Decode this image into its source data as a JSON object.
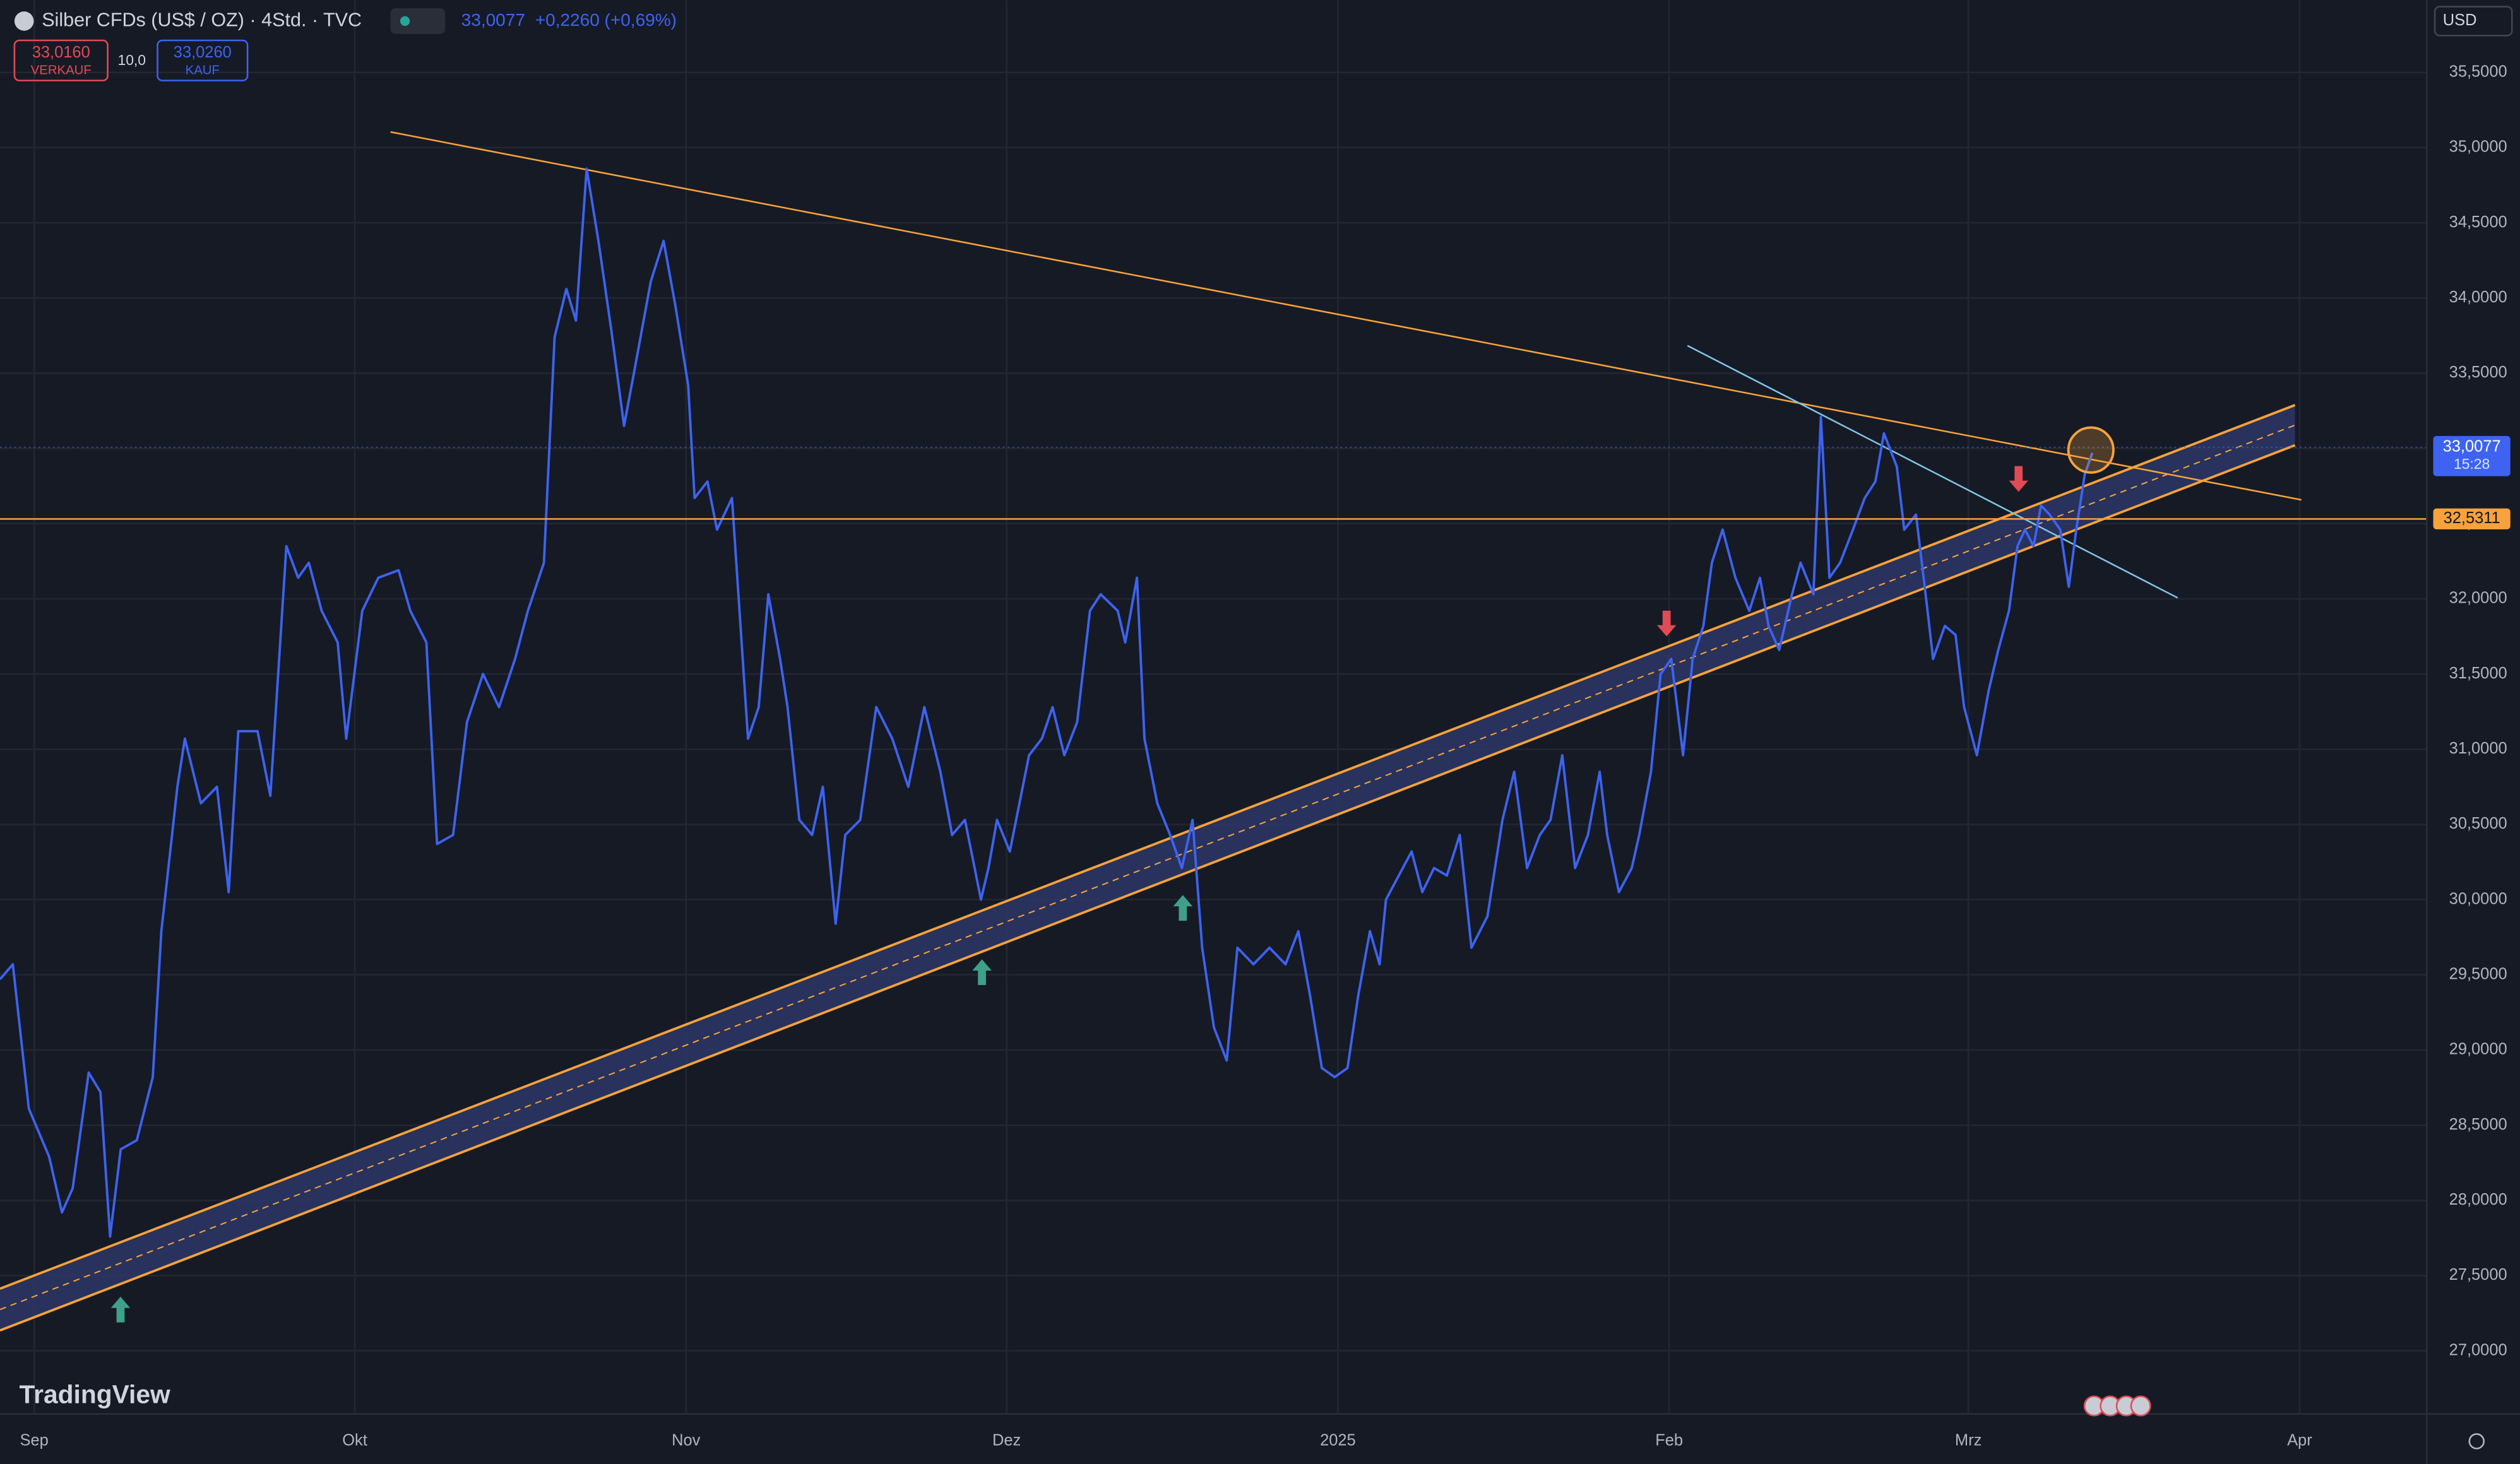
{
  "chart_data": {
    "type": "line",
    "title": "Silber CFDs (US$ / OZ) · 4Std. · TVC",
    "x": [
      -3.2,
      -2.0,
      -0.5,
      1.4,
      2.6,
      3.6,
      5.1,
      6.2,
      7.1,
      8.1,
      9.6,
      11.1,
      11.9,
      13.4,
      14.1,
      15.6,
      17.1,
      18.2,
      19.1,
      20.9,
      22.1,
      23.6,
      24.7,
      25.7,
      26.9,
      28.4,
      29.2,
      30.7,
      32.2,
      34.1,
      35.2,
      36.7,
      37.7,
      39.2,
      40.5,
      42.0,
      43.5,
      45.0,
      46.2,
      47.7,
      48.7,
      49.8,
      50.7,
      51.7,
      52.8,
      54.0,
      55.2,
      56.2,
      57.7,
      58.9,
      60.0,
      61.2,
      61.8,
      63.0,
      63.9,
      65.3,
      66.8,
      67.8,
      68.7,
      69.8,
      70.5,
      71.6,
      72.8,
      73.8,
      75.0,
      75.9,
      77.3,
      78.8,
      80.3,
      81.8,
      83.3,
      84.8,
      85.9,
      87.1,
      88.6,
      89.3,
      90.1,
      91.3,
      93.1,
      94.3,
      95.3,
      96.4,
      97.6,
      98.8,
      99.8,
      101.4,
      102.1,
      103.2,
      103.9,
      105.1,
      106.3,
      107.4,
      108.4,
      109.3,
      110.4,
      111.6,
      112.6,
      114.1,
      115.6,
      117.1,
      118.3,
      119.4,
      120.5,
      121.7,
      122.9,
      123.9,
      125.0,
      125.9,
      126.5,
      127.7,
      128.9,
      129.9,
      131.0,
      132.2,
      133.4,
      134.5,
      136.0,
      137.4,
      138.5,
      139.7,
      140.9,
      141.9,
      143.0,
      144.2,
      145.4,
      146.5,
      147.2,
      148.3,
      149.5,
      150.2,
      151.3,
      152.2,
      153.2,
      154.3,
      155.2,
      156.2,
      157.0,
      158.0,
      159.2,
      160.5,
      161.5,
      162.3,
      163.3,
      164.5,
      165.3,
      166.5,
      167.2,
      168.0,
      169.0,
      170.2,
      171.3,
      172.3,
      173.1,
      174.3,
      175.0,
      176.1,
      177.0,
      177.7,
      178.8,
      179.8,
      180.6,
      181.8,
      182.9,
      183.8,
      184.8,
      185.6,
      186.3,
      187.1,
      187.8,
      188.6,
      189.6,
      190.4,
      191.1,
      191.9,
      192.6
    ],
    "series": [
      {
        "color": "#3d63f0",
        "values": [
          29.47,
          29.57,
          28.61,
          28.29,
          27.92,
          28.08,
          28.85,
          28.72,
          27.76,
          28.34,
          28.4,
          28.82,
          29.79,
          30.75,
          31.07,
          30.64,
          30.75,
          30.05,
          31.12,
          31.12,
          30.69,
          32.35,
          32.14,
          32.24,
          31.92,
          31.71,
          31.07,
          31.92,
          32.14,
          32.19,
          31.92,
          31.71,
          30.37,
          30.43,
          31.18,
          31.5,
          31.28,
          31.6,
          31.92,
          32.24,
          33.74,
          34.06,
          33.85,
          34.86,
          34.38,
          33.79,
          33.15,
          33.53,
          34.11,
          34.38,
          33.95,
          33.42,
          32.67,
          32.78,
          32.46,
          32.67,
          31.07,
          31.28,
          32.03,
          31.6,
          31.28,
          30.53,
          30.43,
          30.75,
          29.84,
          30.43,
          30.53,
          31.28,
          31.07,
          30.75,
          31.28,
          30.85,
          30.43,
          30.53,
          30.0,
          30.21,
          30.53,
          30.32,
          30.96,
          31.07,
          31.28,
          30.96,
          31.18,
          31.92,
          32.03,
          31.92,
          31.71,
          32.14,
          31.07,
          30.64,
          30.43,
          30.21,
          30.53,
          29.68,
          29.15,
          28.93,
          29.68,
          29.57,
          29.68,
          29.57,
          29.79,
          29.36,
          28.88,
          28.82,
          28.88,
          29.36,
          29.79,
          29.57,
          30.0,
          30.16,
          30.32,
          30.05,
          30.21,
          30.16,
          30.43,
          29.68,
          29.89,
          30.53,
          30.85,
          30.21,
          30.43,
          30.53,
          30.96,
          30.21,
          30.43,
          30.85,
          30.43,
          30.05,
          30.21,
          30.43,
          30.85,
          31.5,
          31.6,
          30.96,
          31.6,
          31.82,
          32.24,
          32.46,
          32.14,
          31.92,
          32.14,
          31.82,
          31.66,
          32.03,
          32.24,
          32.03,
          33.21,
          32.14,
          32.24,
          32.46,
          32.67,
          32.78,
          33.1,
          32.88,
          32.46,
          32.56,
          32.03,
          31.6,
          31.82,
          31.76,
          31.28,
          30.96,
          31.39,
          31.66,
          31.92,
          32.35,
          32.46,
          32.35,
          32.62,
          32.56,
          32.46,
          32.08,
          32.46,
          32.83,
          32.97
        ]
      }
    ],
    "xlim": [
      -3.2,
      223.9
    ],
    "xticks": [
      {
        "value": 0,
        "label": "Sep"
      },
      {
        "value": 30,
        "label": "Okt"
      },
      {
        "value": 61,
        "label": "Nov"
      },
      {
        "value": 91,
        "label": "Dez"
      },
      {
        "value": 122,
        "label": "2025"
      },
      {
        "value": 153,
        "label": "Feb"
      },
      {
        "value": 181,
        "label": "Mrz"
      },
      {
        "value": 212,
        "label": "Apr"
      }
    ],
    "ylim": [
      26.58,
      35.98
    ],
    "yticks": [
      {
        "value": 27,
        "label": "27,0000"
      },
      {
        "value": 27.5,
        "label": "27,5000"
      },
      {
        "value": 28,
        "label": "28,0000"
      },
      {
        "value": 28.5,
        "label": "28,5000"
      },
      {
        "value": 29,
        "label": "29,0000"
      },
      {
        "value": 29.5,
        "label": "29,5000"
      },
      {
        "value": 30,
        "label": "30,0000"
      },
      {
        "value": 30.5,
        "label": "30,5000"
      },
      {
        "value": 31,
        "label": "31,0000"
      },
      {
        "value": 31.5,
        "label": "31,5000"
      },
      {
        "value": 32,
        "label": "32,0000"
      },
      {
        "value": 32.5,
        "label": "32,5000"
      },
      {
        "value": 33,
        "label": "33,0000"
      },
      {
        "value": 33.5,
        "label": "33,5000"
      },
      {
        "value": 34,
        "label": "34,0000"
      },
      {
        "value": 34.5,
        "label": "34,5000"
      },
      {
        "value": 35,
        "label": "35,0000"
      },
      {
        "value": 35.5,
        "label": "35,5000"
      }
    ],
    "grid": true,
    "horizontal_line": {
      "value": 32.5311,
      "label": "32,5311",
      "color": "#f7a23a"
    },
    "last_price": {
      "value": 33.0077,
      "label": "33,0077",
      "time": "15:28"
    }
  },
  "header": {
    "change": "+0,2260 (+0,69%)",
    "sell_price": "33,0160",
    "sell_label": "VERKAUF",
    "quantity": "10,0",
    "buy_price": "33,0260",
    "buy_label": "KAUF",
    "currency": "USD",
    "brand": "TradingView"
  }
}
